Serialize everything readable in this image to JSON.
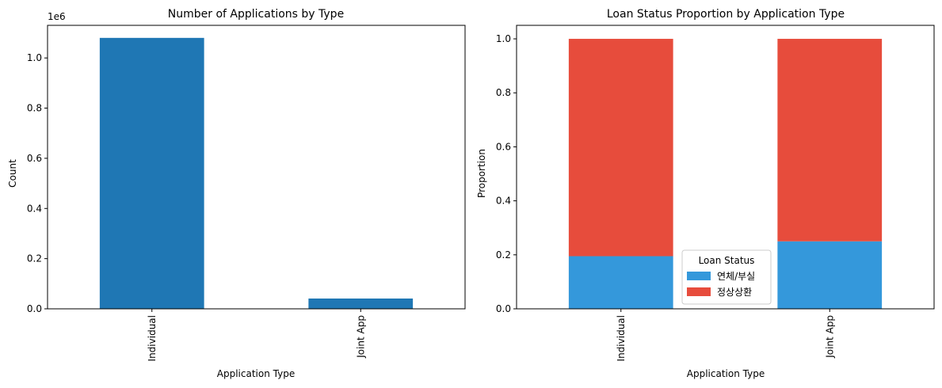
{
  "chart_data": [
    {
      "type": "bar",
      "title": "Number of Applications by Type",
      "xlabel": "Application Type",
      "ylabel": "Count",
      "offset_text": "1e6",
      "ylim": [
        0,
        1.13
      ],
      "yticks": [
        "0.0",
        "0.2",
        "0.4",
        "0.6",
        "0.8",
        "1.0"
      ],
      "ytick_values": [
        0,
        0.2,
        0.4,
        0.6,
        0.8,
        1.0
      ],
      "categories": [
        "Individual",
        "Joint App"
      ],
      "values": [
        1.08,
        0.041
      ],
      "color": "#1f77b4",
      "grid": false
    },
    {
      "type": "bar",
      "stacked": true,
      "title": "Loan Status Proportion by Application Type",
      "xlabel": "Application Type",
      "ylabel": "Proportion",
      "ylim": [
        0,
        1.05
      ],
      "yticks": [
        "0.0",
        "0.2",
        "0.4",
        "0.6",
        "0.8",
        "1.0"
      ],
      "ytick_values": [
        0,
        0.2,
        0.4,
        0.6,
        0.8,
        1.0
      ],
      "categories": [
        "Individual",
        "Joint App"
      ],
      "series": [
        {
          "name": "연체/부실",
          "values": [
            0.195,
            0.25
          ],
          "color": "#3498db"
        },
        {
          "name": "정상상환",
          "values": [
            0.805,
            0.75
          ],
          "color": "#e74c3c"
        }
      ],
      "legend_title": "Loan Status",
      "legend_position": "lower center",
      "grid": false
    }
  ]
}
